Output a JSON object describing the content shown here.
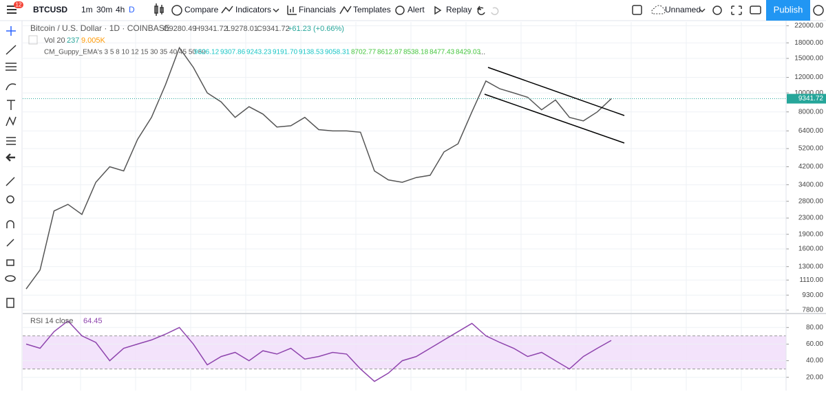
{
  "toolbar": {
    "symbol": "BTCUSD",
    "badge": "12",
    "intervals": [
      "1m",
      "30m",
      "4h",
      "D"
    ],
    "buttons": [
      "Compare",
      "Indicators",
      "Financials",
      "Templates",
      "Alert",
      "Replay"
    ],
    "layout_name": "Unnamed",
    "publish": "Publish"
  },
  "legend": {
    "instrument": "Bitcoin / U.S. Dollar · 1D · COINBASE",
    "ohlc": [
      "O9280.49",
      "H9341.72",
      "L9278.01",
      "C9341.72"
    ],
    "change": "+61.23 (+0.66%)",
    "volume": [
      "Vol 20",
      "237",
      "9.005K"
    ],
    "guppy_name": "CM_Guppy_EMA's 3 5 8 10 12 15 30 35 40 45 50 60",
    "guppy_values": [
      "9326.12",
      "9307.86",
      "9243.23",
      "9191.70",
      "9138.53",
      "9058.31",
      "8702.77",
      "8612.87",
      "8538.18",
      "8477.43",
      "8429.03"
    ],
    "rsi_name": "RSI 14 close",
    "rsi_value": "64.45"
  },
  "chart_data": [
    {
      "type": "line",
      "log_scale": true,
      "color": "#555555",
      "last_price_label": "9341.72",
      "values": [
        1000,
        1250,
        2500,
        2700,
        2400,
        3500,
        4200,
        4000,
        5800,
        7500,
        11000,
        17000,
        13500,
        10000,
        9000,
        7500,
        8500,
        7800,
        6700,
        6800,
        7500,
        6500,
        6400,
        6400,
        6300,
        4000,
        3600,
        3500,
        3700,
        3800,
        5000,
        5500,
        8000,
        11500,
        10500,
        10000,
        9500,
        8200,
        9200,
        7500,
        7200,
        8000,
        9341.72
      ],
      "ylim": [
        755,
        23000
      ],
      "yticks": [
        {
          "value": 22000,
          "label": "22000.00"
        },
        {
          "value": 18000,
          "label": "18000.00"
        },
        {
          "value": 15000,
          "label": "15000.00"
        },
        {
          "value": 12000,
          "label": "12000.00"
        },
        {
          "value": 10000,
          "label": "10000.00"
        },
        {
          "value": 8000,
          "label": "8000.00"
        },
        {
          "value": 6400,
          "label": "6400.00"
        },
        {
          "value": 5200,
          "label": "5200.00"
        },
        {
          "value": 4200,
          "label": "4200.00"
        },
        {
          "value": 3400,
          "label": "3400.00"
        },
        {
          "value": 2800,
          "label": "2800.00"
        },
        {
          "value": 2300,
          "label": "2300.00"
        },
        {
          "value": 1900,
          "label": "1900.00"
        },
        {
          "value": 1600,
          "label": "1600.00"
        },
        {
          "value": 1300,
          "label": "1300.00"
        },
        {
          "value": 1110,
          "label": "1110.00"
        },
        {
          "value": 930,
          "label": "930.00"
        },
        {
          "value": 780,
          "label": "780.00"
        }
      ],
      "grid": true
    },
    {
      "type": "line",
      "color": "#8e44ad",
      "band_color": "#f0dcfa",
      "values": [
        60,
        55,
        75,
        88,
        70,
        62,
        40,
        55,
        60,
        65,
        72,
        80,
        60,
        35,
        45,
        50,
        40,
        52,
        48,
        55,
        42,
        45,
        50,
        48,
        30,
        15,
        25,
        40,
        45,
        55,
        65,
        75,
        85,
        70,
        62,
        55,
        45,
        50,
        40,
        30,
        45,
        55,
        64.45
      ],
      "bands": [
        30,
        70
      ],
      "ylim": [
        4,
        96
      ],
      "yticks": [
        {
          "value": 80,
          "label": "80.00"
        },
        {
          "value": 60,
          "label": "60.00"
        },
        {
          "value": 40,
          "label": "40.00"
        },
        {
          "value": 20,
          "label": "20.00"
        }
      ],
      "grid": true
    }
  ]
}
